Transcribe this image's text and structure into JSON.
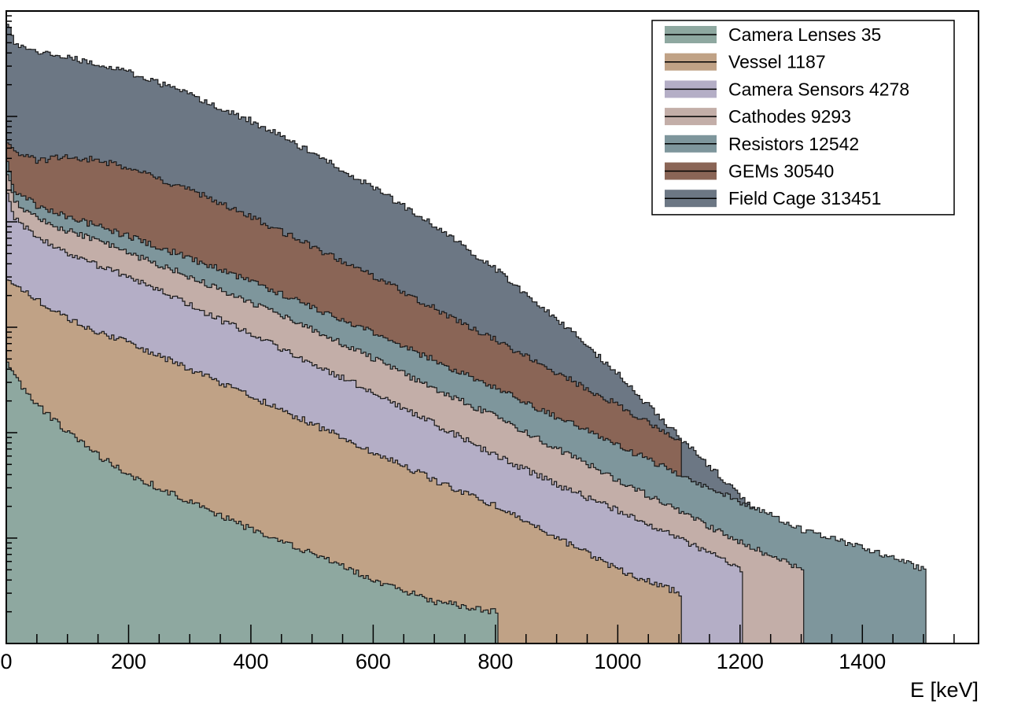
{
  "chart_data": {
    "type": "area",
    "xlabel": "E [keV]",
    "ylabel": "",
    "y_scale": "log",
    "x_ticks": [
      0,
      200,
      400,
      600,
      800,
      1000,
      1200,
      1400
    ],
    "xlim": [
      0,
      1590
    ],
    "ylim": [
      0.1,
      100000
    ],
    "legend_position": "top-right",
    "grid": false,
    "x": [
      0,
      10,
      50,
      100,
      150,
      200,
      300,
      400,
      500,
      600,
      700,
      800,
      900,
      1000,
      1100,
      1200,
      1300,
      1400,
      1500,
      1530
    ],
    "series": [
      {
        "name": "Camera Lenses 35",
        "color": "#8ea8a0",
        "values": [
          50,
          35,
          18,
          10,
          6,
          4,
          2.2,
          1.2,
          0.7,
          0.4,
          0.25,
          0.2,
          null,
          null,
          null,
          null,
          null,
          null,
          null,
          null
        ]
      },
      {
        "name": "Vessel 1187",
        "color": "#c0a286",
        "values": [
          300,
          260,
          180,
          120,
          90,
          70,
          40,
          22,
          12,
          6.5,
          3.5,
          2,
          1,
          0.5,
          0.3,
          null,
          null,
          null,
          null,
          null
        ]
      },
      {
        "name": "Camera Sensors 4278",
        "color": "#b4aec6",
        "values": [
          2000,
          1100,
          700,
          500,
          380,
          300,
          160,
          85,
          45,
          24,
          12,
          6,
          3.2,
          1.8,
          1,
          0.5,
          null,
          null,
          null,
          null
        ]
      },
      {
        "name": "Cathodes 9293",
        "color": "#c3aea8",
        "values": [
          3000,
          1600,
          1050,
          820,
          650,
          500,
          300,
          170,
          95,
          50,
          26,
          14,
          7,
          3.5,
          1.8,
          0.9,
          0.5,
          null,
          null,
          null
        ]
      },
      {
        "name": "Resistors 12542",
        "color": "#7e969c",
        "values": [
          4000,
          2000,
          1400,
          1100,
          900,
          720,
          450,
          270,
          155,
          88,
          48,
          26,
          14,
          7.5,
          4,
          2.2,
          1.2,
          0.8,
          0.5,
          null
        ]
      },
      {
        "name": "GEMs 30540",
        "color": "#8a6556",
        "values": [
          6000,
          4500,
          3800,
          4200,
          3800,
          3200,
          2000,
          1100,
          580,
          300,
          150,
          75,
          37,
          18,
          8.5,
          null,
          null,
          null,
          null,
          null
        ]
      },
      {
        "name": "Field Cage 313451",
        "color": "#6c7784",
        "values": [
          80000,
          50000,
          42000,
          36000,
          31000,
          26000,
          16000,
          9000,
          4500,
          2100,
          900,
          350,
          120,
          35,
          9,
          2.5,
          0.8,
          null,
          null,
          null
        ]
      }
    ]
  }
}
